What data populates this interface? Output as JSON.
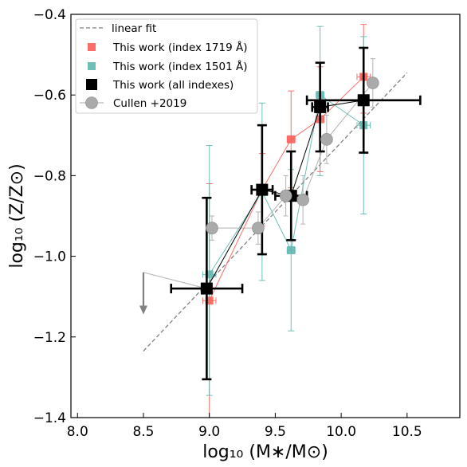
{
  "chart_data": {
    "type": "scatter",
    "xlabel": "log₁₀ (M∗/M⊙)",
    "ylabel": "log₁₀ (Z/Z⊙)",
    "xlim": [
      7.95,
      10.9
    ],
    "ylim": [
      -1.4,
      -0.4
    ],
    "xticks": [
      "8.0",
      "8.5",
      "9.0",
      "9.5",
      "10.0",
      "10.5"
    ],
    "yticks": [
      "−1.4",
      "−1.2",
      "−1.0",
      "−0.8",
      "−0.6",
      "−0.4"
    ],
    "grid": false,
    "legend_position": "top-left",
    "series": [
      {
        "name": "linear fit",
        "kind": "dashed-line",
        "color": "#808080",
        "x": [
          8.5,
          10.5
        ],
        "y": [
          -1.235,
          -0.545
        ]
      },
      {
        "name": "This work (index 1719 Å)",
        "kind": "squares-with-errors",
        "color": "#f8615a",
        "x": [
          9.0,
          9.4,
          9.62,
          9.84,
          10.17
        ],
        "y": [
          -1.11,
          -0.835,
          -0.71,
          -0.66,
          -0.555
        ],
        "yerr_lo": [
          0.29,
          0.09,
          0.12,
          0.13,
          0.09
        ],
        "yerr_hi": [
          0.29,
          0.09,
          0.12,
          0.13,
          0.13
        ],
        "xerr": [
          0.05,
          0.03,
          0.03,
          0.03,
          0.05
        ]
      },
      {
        "name": "This work (index 1501 Å)",
        "kind": "squares-with-errors",
        "color": "#5fb8b0",
        "x": [
          9.0,
          9.4,
          9.62,
          9.84,
          10.17
        ],
        "y": [
          -1.045,
          -0.84,
          -0.985,
          -0.6,
          -0.675
        ],
        "yerr_lo": [
          0.3,
          0.22,
          0.2,
          0.2,
          0.22
        ],
        "yerr_hi": [
          0.32,
          0.22,
          0.2,
          0.17,
          0.22
        ],
        "xerr": [
          0.05,
          0.03,
          0.03,
          0.03,
          0.05
        ]
      },
      {
        "name": "This work (all indexes)",
        "kind": "squares-with-errors",
        "color": "#000000",
        "x": [
          8.98,
          9.4,
          9.62,
          9.84,
          10.17
        ],
        "y": [
          -1.08,
          -0.835,
          -0.85,
          -0.63,
          -0.613
        ],
        "yerr_lo": [
          0.225,
          0.16,
          0.11,
          0.11,
          0.13
        ],
        "yerr_hi": [
          0.225,
          0.16,
          0.11,
          0.11,
          0.13
        ],
        "xerr": [
          0.27,
          0.08,
          0.12,
          0.06,
          0.43
        ]
      },
      {
        "name": "Cullen +2019",
        "kind": "circles-with-errors",
        "color": "#aaaaaa",
        "x": [
          9.02,
          9.37,
          9.58,
          9.71,
          9.89,
          10.24
        ],
        "y": [
          -0.93,
          -0.93,
          -0.85,
          -0.86,
          -0.71,
          -0.57
        ],
        "yerr_lo": [
          0.03,
          0.04,
          0.05,
          0.06,
          0.06,
          0.06
        ],
        "yerr_hi": [
          0.03,
          0.04,
          0.05,
          0.06,
          0.06,
          0.06
        ]
      }
    ],
    "upper_limit": {
      "x": 8.5,
      "y_top": -1.04,
      "y_bottom": -1.14,
      "link_to": [
        8.98,
        -1.08
      ],
      "color": "#808080"
    }
  }
}
